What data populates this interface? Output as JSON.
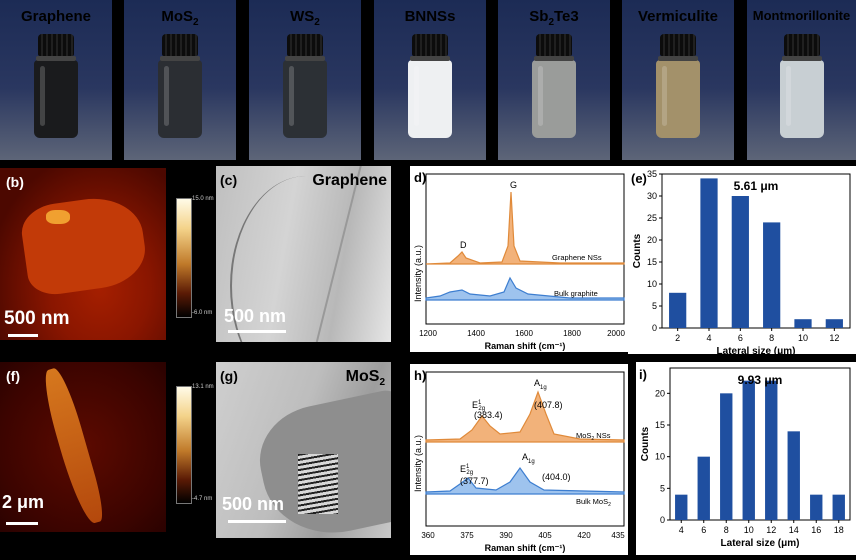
{
  "colors": {
    "bar_blue": "#1f4fa0",
    "raman_orange": "#f0a55a",
    "raman_blue": "#3d7ed0",
    "vial_backdrop": "#24315a"
  },
  "vials": [
    {
      "label": "Graphene",
      "sub": "",
      "label_post": "",
      "liquid": "#1a1b1d"
    },
    {
      "label": "MoS",
      "sub": "2",
      "label_post": "",
      "liquid": "#2b2e33"
    },
    {
      "label": "WS",
      "sub": "2",
      "label_post": "",
      "liquid": "#2c3035"
    },
    {
      "label": "BNNSs",
      "sub": "",
      "label_post": "",
      "liquid": "#eef0f2"
    },
    {
      "label": "Sb",
      "sub": "2",
      "label_post": "Te3",
      "liquid": "#9a9c9a"
    },
    {
      "label": "Vermiculite",
      "sub": "",
      "label_post": "",
      "liquid": "#a3916a"
    },
    {
      "label": "Montmorillonite",
      "sub": "",
      "label_post": "",
      "liquid": "#c8cfd3"
    }
  ],
  "panel_b": {
    "tag": "(b)",
    "scale": "500 nm",
    "cbar_top": "15.0 nm",
    "cbar_bottom": "-6.0 nm"
  },
  "panel_c": {
    "tag": "(c)",
    "title": "Graphene",
    "scale": "500 nm"
  },
  "panel_d": {
    "tag": "d)",
    "peak_d": "D",
    "peak_g": "G",
    "trace_top": "Graphene NSs",
    "trace_bottom": "Bulk graphite",
    "ylabel": "Intensity (a.u.)",
    "xlabel": "Raman shift (cm⁻¹)",
    "xticks": [
      "1200",
      "1400",
      "1600",
      "1800",
      "2000"
    ]
  },
  "panel_f": {
    "tag": "(f)",
    "scale": "2 μm",
    "cbar_top": "13.1 nm",
    "cbar_bottom": "-4.7 nm"
  },
  "panel_g": {
    "tag": "(g)",
    "title": "MoS",
    "title_sub": "2",
    "scale": "500 nm"
  },
  "panel_h": {
    "tag": "h)",
    "ylabel": "Intensity (a.u.)",
    "xlabel": "Raman shift (cm⁻¹)",
    "xticks": [
      "360",
      "375",
      "390",
      "405",
      "420",
      "435"
    ],
    "top_e": "E",
    "top_e_val": "(383.4)",
    "top_a": "A",
    "top_a_val": "(407.8)",
    "bot_e": "E",
    "bot_e_val": "(377.7)",
    "bot_a": "A",
    "bot_a_val": "(404.0)",
    "e_sup": "1",
    "e_sub": "2g",
    "a_sub": "1g",
    "trace_top": "MoS",
    "trace_top_post": " NSs",
    "trace_bottom": "Bulk MoS",
    "sub2": "2"
  },
  "chart_data": [
    {
      "type": "bar",
      "panel": "(e)",
      "title": "5.61 μm",
      "xlabel": "Lateral size (μm)",
      "ylabel": "Counts",
      "x": [
        2,
        4,
        6,
        8,
        10,
        12
      ],
      "values": [
        8,
        34,
        30,
        24,
        2,
        2
      ],
      "xlim": [
        1,
        13
      ],
      "ylim": [
        0,
        35
      ],
      "xticks": [
        "2",
        "4",
        "6",
        "8",
        "10",
        "12"
      ],
      "yticks": [
        "0",
        "5",
        "10",
        "15",
        "20",
        "25",
        "30",
        "35"
      ]
    },
    {
      "type": "bar",
      "panel": "i)",
      "title": "9.93 μm",
      "xlabel": "Lateral size (μm)",
      "ylabel": "Counts",
      "x": [
        4,
        6,
        8,
        10,
        12,
        14,
        16,
        18
      ],
      "values": [
        4,
        10,
        20,
        22,
        22,
        14,
        4,
        4
      ],
      "xlim": [
        3,
        19
      ],
      "ylim": [
        0,
        24
      ],
      "xticks": [
        "4",
        "6",
        "8",
        "10",
        "12",
        "14",
        "16",
        "18"
      ],
      "yticks": [
        "0",
        "5",
        "10",
        "15",
        "20"
      ]
    }
  ]
}
